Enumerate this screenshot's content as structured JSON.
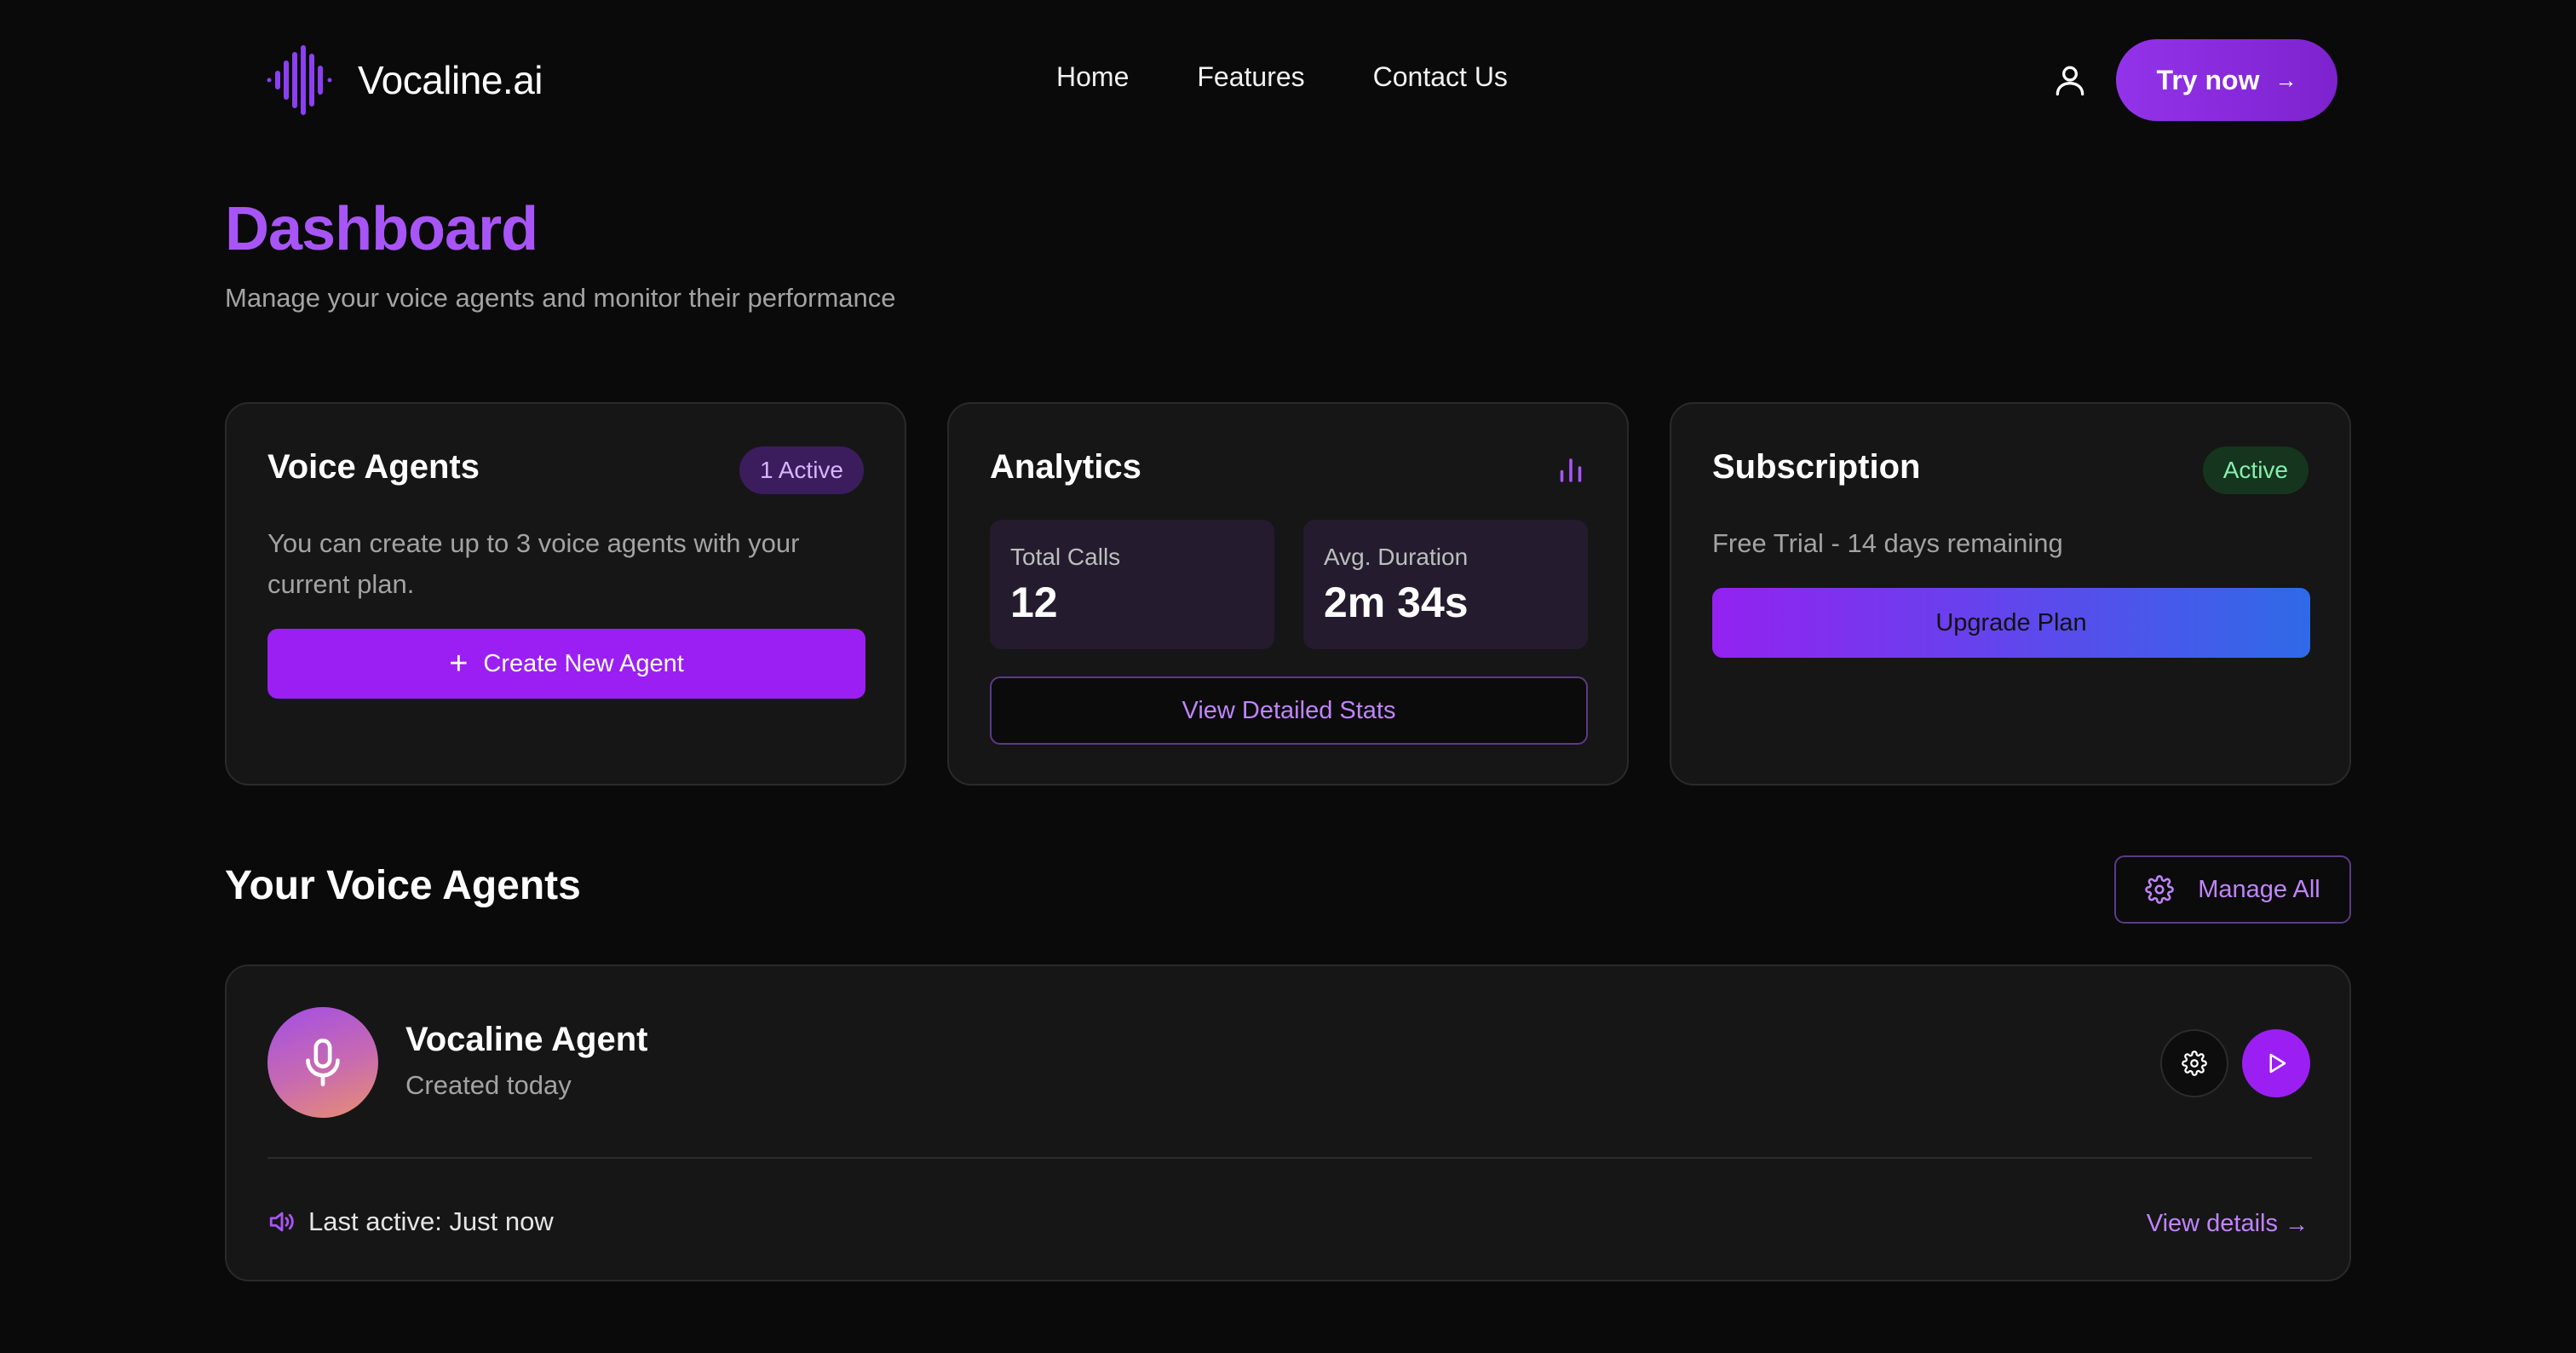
{
  "header": {
    "brand": "Vocaline.ai",
    "nav": [
      "Home",
      "Features",
      "Contact Us"
    ],
    "try_label": "Try now",
    "try_arrow": "→"
  },
  "page": {
    "title": "Dashboard",
    "subtitle": "Manage your voice agents and monitor their performance"
  },
  "cards": {
    "voice_agents": {
      "title": "Voice Agents",
      "badge": "1 Active",
      "text": "You can create up to 3 voice agents with your current plan.",
      "button_icon": "+",
      "button": "Create New Agent"
    },
    "analytics": {
      "title": "Analytics",
      "icon": "bar-chart-icon",
      "stats": [
        {
          "label": "Total Calls",
          "value": "12"
        },
        {
          "label": "Avg. Duration",
          "value": "2m 34s"
        }
      ],
      "button": "View Detailed Stats"
    },
    "subscription": {
      "title": "Subscription",
      "badge": "Active",
      "text": "Free Trial - 14 days remaining",
      "button": "Upgrade Plan"
    }
  },
  "agents_section": {
    "title": "Your Voice Agents",
    "manage_label": "Manage All",
    "agents": [
      {
        "name": "Vocaline Agent",
        "created": "Created today",
        "last_active": "Last active: Just now",
        "details_label": "View details",
        "details_arrow": "→"
      }
    ]
  },
  "colors": {
    "accent": "#a855f7",
    "button_purple": "#9b1ff2",
    "gradient_end_blue": "#2f6ae8",
    "badge_green_text": "#86efac",
    "background": "#0a0a0a",
    "card": "#161616"
  }
}
